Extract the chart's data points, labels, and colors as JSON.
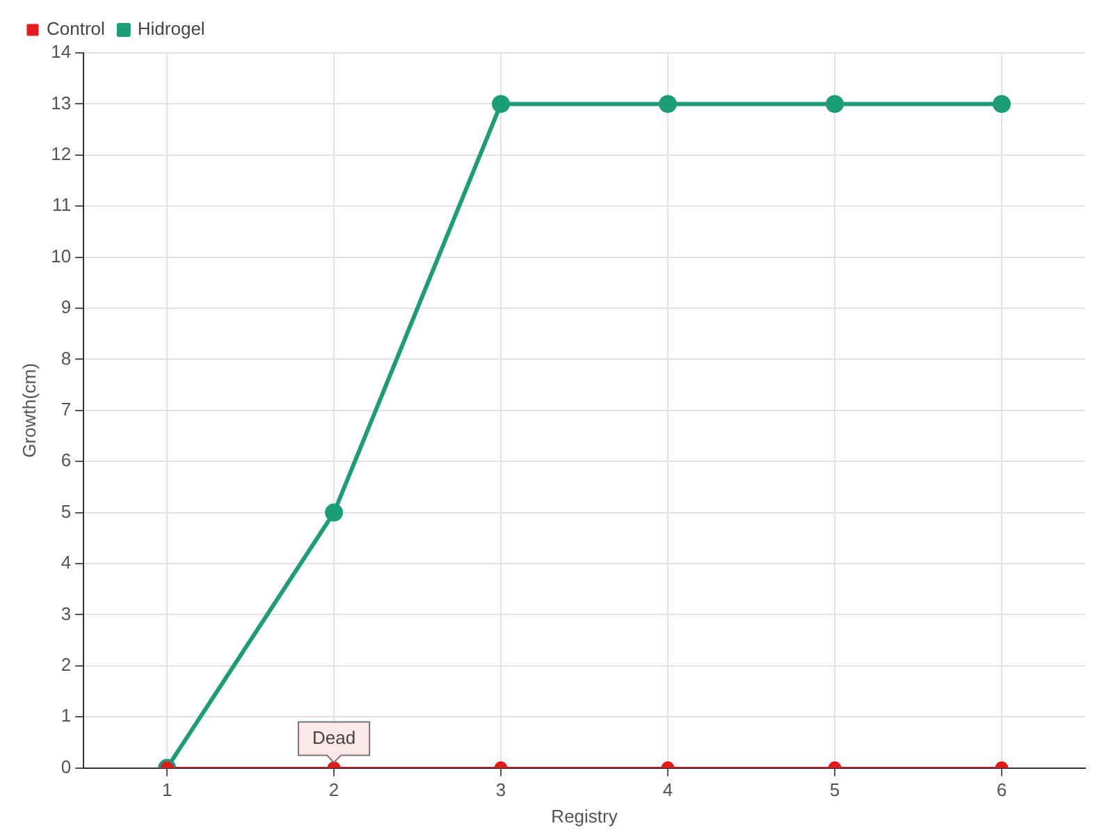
{
  "chart_data": {
    "type": "line",
    "xlabel": "Registry",
    "ylabel": "Growth(cm)",
    "categories": [
      "1",
      "2",
      "3",
      "4",
      "5",
      "6"
    ],
    "series": [
      {
        "name": "Hidrogel",
        "color": "#1b9e77",
        "values": [
          0,
          5,
          13,
          13,
          13,
          13
        ]
      },
      {
        "name": "Control",
        "color": "#e41a1c",
        "values": [
          0,
          0,
          0,
          0,
          0,
          0
        ]
      }
    ],
    "ylim": [
      0,
      14
    ],
    "yticks": [
      0,
      1,
      2,
      3,
      4,
      5,
      6,
      7,
      8,
      9,
      10,
      11,
      12,
      13,
      14
    ],
    "grid": true,
    "legend": "top left",
    "marker": "circle",
    "line_style": "solid",
    "annotations": [
      {
        "text": "Dead",
        "x": "2",
        "y": 0
      }
    ]
  }
}
